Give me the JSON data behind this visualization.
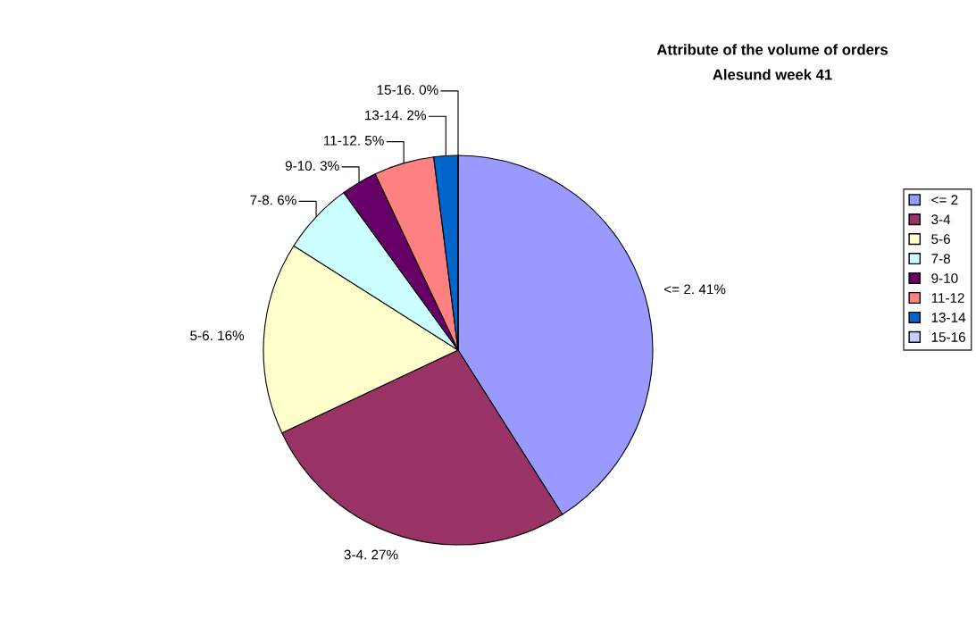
{
  "chart_data": {
    "type": "pie",
    "title": "Attribute of the volume of orders",
    "subtitle": "Alesund week 41",
    "categories": [
      "<= 2",
      "3-4",
      "5-6",
      "7-8",
      "9-10",
      "11-12",
      "13-14",
      "15-16"
    ],
    "values": [
      41,
      27,
      16,
      6,
      3,
      5,
      2,
      0
    ],
    "colors": [
      "#9999ff",
      "#993366",
      "#ffffcc",
      "#ccffff",
      "#660066",
      "#ff8080",
      "#0066cc",
      "#ccccff"
    ],
    "value_labels": [
      "<= 2. 41%",
      "3-4. 27%",
      "5-6. 16%",
      "7-8. 6%",
      "9-10. 3%",
      "11-12. 5%",
      "13-14. 2%",
      "15-16. 0%"
    ],
    "legend": "right"
  }
}
